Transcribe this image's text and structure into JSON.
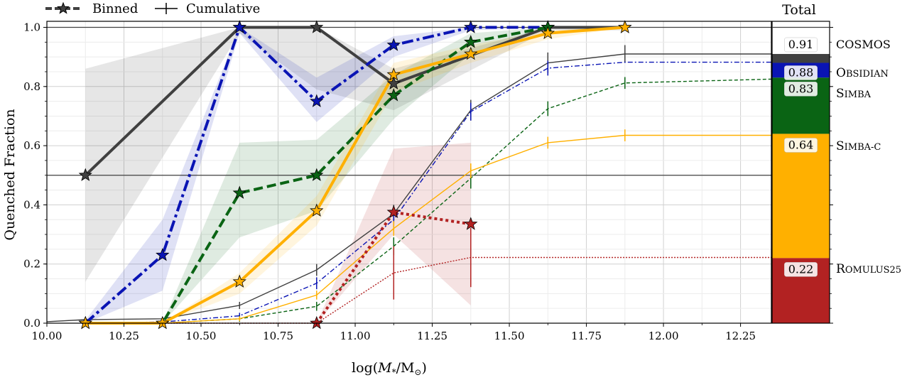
{
  "chart_data": {
    "type": "line",
    "title": "",
    "xlabel": "log(M*/M⊙)",
    "ylabel": "Quenched Fraction",
    "xlim": [
      10.0,
      12.35
    ],
    "ylim": [
      0.0,
      1.02
    ],
    "xticks": [
      10.0,
      10.25,
      10.5,
      10.75,
      11.0,
      11.25,
      11.5,
      11.75,
      12.0,
      12.25
    ],
    "xtick_labels": [
      "10.00",
      "10.25",
      "10.50",
      "10.75",
      "11.00",
      "11.25",
      "11.50",
      "11.75",
      "12.00",
      "12.25"
    ],
    "yticks": [
      0.0,
      0.2,
      0.4,
      0.6,
      0.8,
      1.0
    ],
    "ytick_labels": [
      "0.0",
      "0.2",
      "0.4",
      "0.6",
      "0.8",
      "1.0"
    ],
    "grid": true,
    "legend": {
      "position": "top-left",
      "entries": [
        "Binned",
        "Cumulative"
      ]
    },
    "reference_lines": [
      0.5,
      1.0
    ],
    "x_bins": [
      10.125,
      10.375,
      10.625,
      10.875,
      11.125,
      11.375,
      11.625,
      11.875
    ],
    "series": [
      {
        "name": "COSMOS",
        "color": "#404040",
        "linestyle": "solid",
        "binned": [
          0.5,
          null,
          1.0,
          1.0,
          0.81,
          null,
          1.0,
          1.0
        ],
        "band_lower": [
          0.14,
          null,
          0.98,
          0.79,
          0.72,
          null,
          0.99,
          0.99
        ],
        "band_upper": [
          0.86,
          null,
          1.0,
          1.0,
          0.86,
          null,
          1.0,
          1.0
        ],
        "cumulative_x": [
          10.0,
          10.125,
          10.375,
          10.625,
          10.875,
          11.125,
          11.375,
          11.625,
          11.875,
          12.35
        ],
        "cumulative": [
          0.005,
          0.012,
          0.015,
          0.06,
          0.18,
          0.37,
          0.72,
          0.88,
          0.91,
          0.91
        ],
        "cumulative_err": [
          0,
          0,
          0,
          0.012,
          0.02,
          0.03,
          0.035,
          0.035,
          0.03,
          0
        ],
        "total": 0.91
      },
      {
        "name": "Obsidian",
        "color": "#0a14b4",
        "linestyle": "dashdot",
        "binned": [
          0.0,
          0.23,
          1.0,
          0.75,
          0.94,
          1.0,
          1.0,
          null
        ],
        "band_lower": [
          0.0,
          0.11,
          0.98,
          0.68,
          0.9,
          0.99,
          1.0,
          null
        ],
        "band_upper": [
          0.01,
          0.35,
          1.0,
          0.83,
          0.97,
          1.0,
          1.0,
          null
        ],
        "cumulative_x": [
          10.125,
          10.375,
          10.625,
          10.875,
          11.125,
          11.375,
          11.625,
          11.875,
          12.35
        ],
        "cumulative": [
          0.0,
          0.004,
          0.025,
          0.135,
          0.35,
          0.715,
          0.862,
          0.882,
          0.882
        ],
        "cumulative_err": [
          0,
          0,
          0.01,
          0.02,
          0.025,
          0.03,
          0.025,
          0,
          0
        ],
        "total": 0.88
      },
      {
        "name": "Simba",
        "color": "#0a6414",
        "linestyle": "dashed",
        "binned": [
          0.0,
          0.0,
          0.44,
          0.5,
          0.77,
          0.95,
          1.0,
          null
        ],
        "band_lower": [
          0.0,
          0.0,
          0.29,
          0.38,
          0.69,
          0.91,
          1.0,
          null
        ],
        "band_upper": [
          0.0,
          0.0,
          0.61,
          0.62,
          0.84,
          0.98,
          1.0,
          null
        ],
        "cumulative_x": [
          10.125,
          10.375,
          10.625,
          10.875,
          11.125,
          11.375,
          11.625,
          11.875,
          12.35
        ],
        "cumulative": [
          0.0,
          0.0,
          0.015,
          0.057,
          0.26,
          0.49,
          0.725,
          0.812,
          0.825
        ],
        "cumulative_err": [
          0,
          0,
          0.01,
          0.015,
          0.03,
          0.035,
          0.025,
          0.02,
          0
        ],
        "total": 0.83
      },
      {
        "name": "Simba-C",
        "color": "#ffb000",
        "linestyle": "solid",
        "binned": [
          0.0,
          0.0,
          0.14,
          0.38,
          0.84,
          0.91,
          0.98,
          1.0
        ],
        "band_lower": [
          0.0,
          0.0,
          0.1,
          0.33,
          0.78,
          0.88,
          0.96,
          1.0
        ],
        "band_upper": [
          0.0,
          0.0,
          0.17,
          0.43,
          0.88,
          0.94,
          0.99,
          1.0
        ],
        "cumulative_x": [
          10.125,
          10.375,
          10.625,
          10.875,
          11.125,
          11.375,
          11.625,
          11.875,
          12.35
        ],
        "cumulative": [
          0.0,
          0.0,
          0.015,
          0.095,
          0.32,
          0.515,
          0.61,
          0.635,
          0.635
        ],
        "cumulative_err": [
          0,
          0,
          0.008,
          0.015,
          0.025,
          0.025,
          0.02,
          0.02,
          0
        ],
        "total": 0.64
      },
      {
        "name": "Romulus25",
        "color": "#b22222",
        "linestyle": "dotted",
        "binned": [
          null,
          null,
          null,
          0.0,
          0.375,
          0.335,
          null,
          null
        ],
        "band_lower": [
          null,
          null,
          null,
          0.0,
          0.3,
          0.06,
          null,
          null
        ],
        "band_upper": [
          null,
          null,
          null,
          0.0,
          0.59,
          0.61,
          null,
          null
        ],
        "cumulative_x": [
          10.125,
          10.375,
          10.625,
          10.875,
          11.125,
          11.375,
          12.35
        ],
        "cumulative": [
          0.0,
          0.0,
          0.0,
          0.0,
          0.17,
          0.222,
          0.222
        ],
        "cumulative_err": [
          0,
          0,
          0,
          0,
          0.09,
          0.1,
          0
        ],
        "total": 0.22
      }
    ],
    "total_panel": {
      "title": "Total",
      "values": [
        "0.91",
        "0.88",
        "0.83",
        "0.64",
        "0.22"
      ],
      "labels": [
        "COSMOS",
        "Obsidian",
        "Simba",
        "Simba-C",
        "Romulus25"
      ]
    }
  }
}
